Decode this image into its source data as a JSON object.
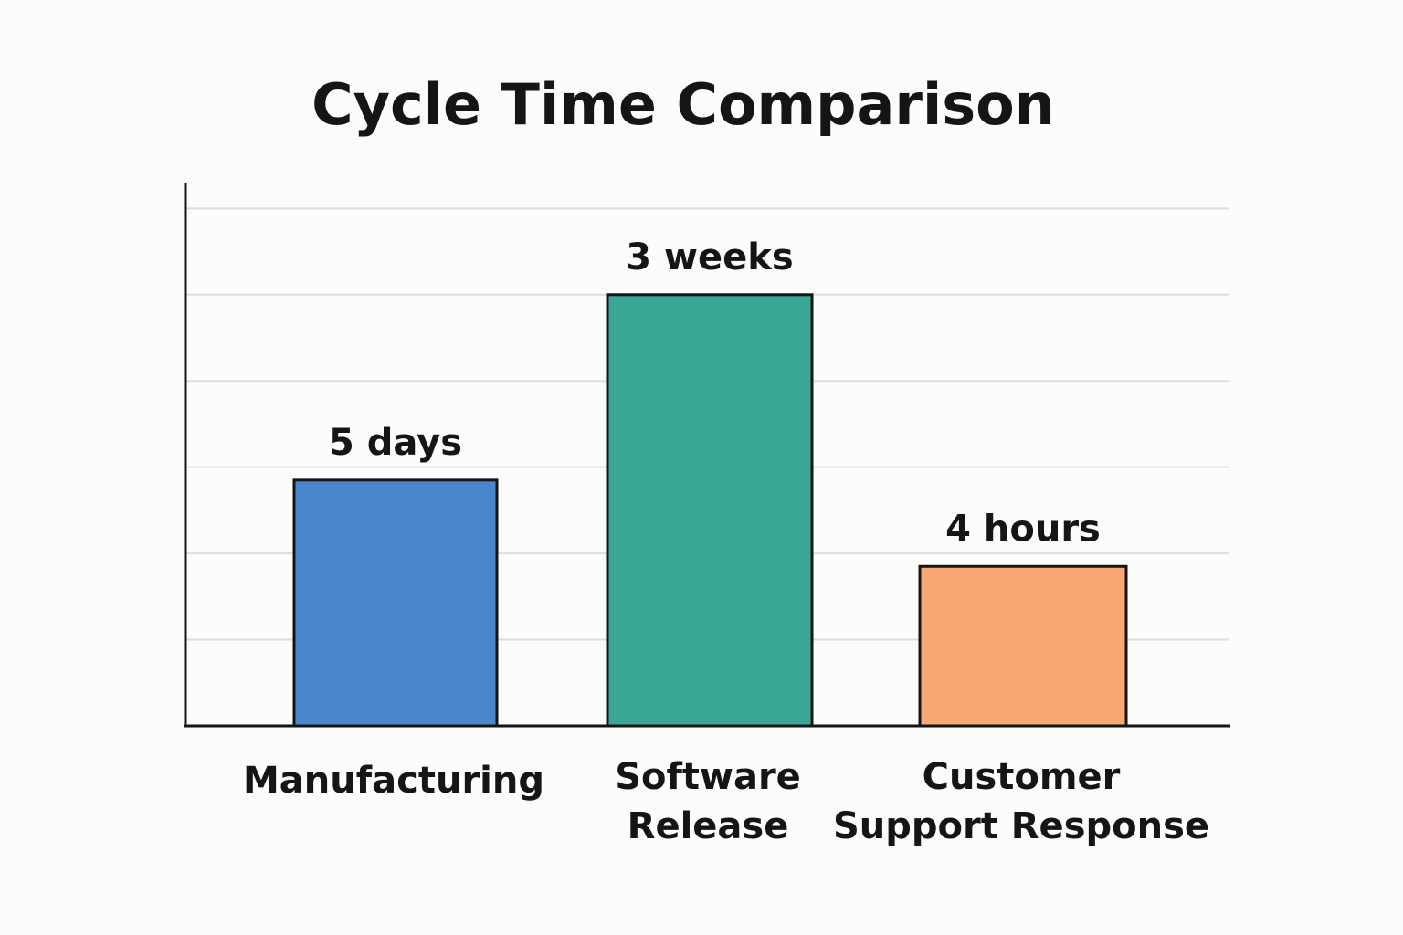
{
  "chart_data": {
    "type": "bar",
    "title": "Cycle Time Comparison",
    "xlabel": "",
    "ylabel": "",
    "grid": true,
    "legend": "none",
    "ylim": [
      0,
      6.3
    ],
    "gridlines": [
      1,
      2,
      3,
      4,
      5,
      6
    ],
    "categories": [
      [
        "Manufacturing"
      ],
      [
        "Software",
        "Release"
      ],
      [
        "Customer",
        "Support Response"
      ]
    ],
    "values": [
      2.85,
      5.0,
      1.85
    ],
    "value_labels": [
      "5 days",
      "3 weeks",
      "4 hours"
    ],
    "colors": [
      "#4a86cd",
      "#3aa897",
      "#f9a874"
    ]
  }
}
